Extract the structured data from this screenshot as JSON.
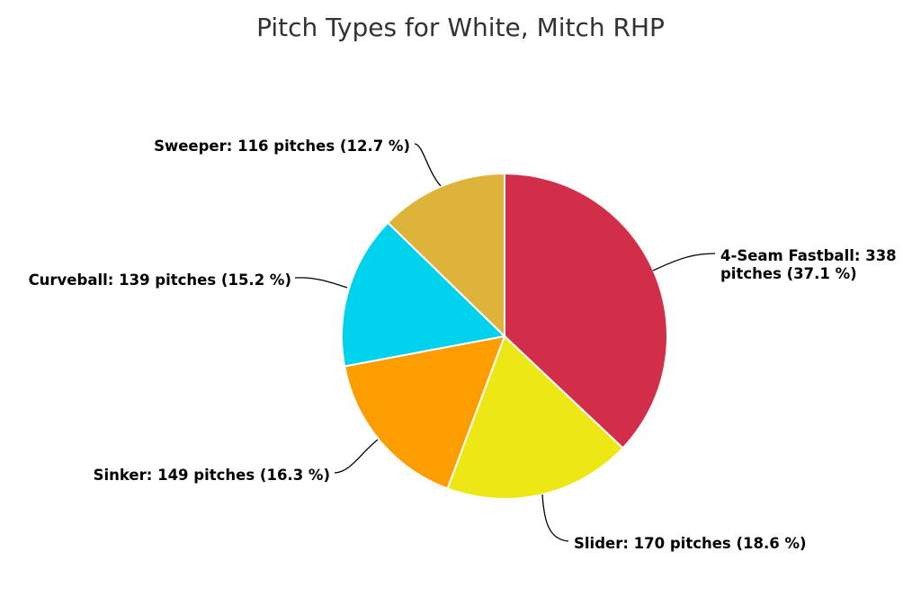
{
  "chart_data": {
    "type": "pie",
    "title": "Pitch Types for White, Mitch RHP",
    "slices": [
      {
        "name": "4-Seam Fastball",
        "value": 338,
        "percent": 37.1,
        "label_lines": [
          "4-Seam Fastball: 338",
          "pitches (37.1 %)"
        ],
        "color": "#d22d49"
      },
      {
        "name": "Slider",
        "value": 170,
        "percent": 18.6,
        "label_lines": [
          "Slider: 170 pitches (18.6 %)"
        ],
        "color": "#eee716"
      },
      {
        "name": "Sinker",
        "value": 149,
        "percent": 16.3,
        "label_lines": [
          "Sinker: 149 pitches (16.3 %)"
        ],
        "color": "#fe9d00"
      },
      {
        "name": "Curveball",
        "value": 139,
        "percent": 15.2,
        "label_lines": [
          "Curveball: 139 pitches (15.2 %)"
        ],
        "color": "#00d1ed"
      },
      {
        "name": "Sweeper",
        "value": 116,
        "percent": 12.7,
        "label_lines": [
          "Sweeper: 116 pitches (12.7 %)"
        ],
        "color": "#ddb33a"
      }
    ]
  }
}
